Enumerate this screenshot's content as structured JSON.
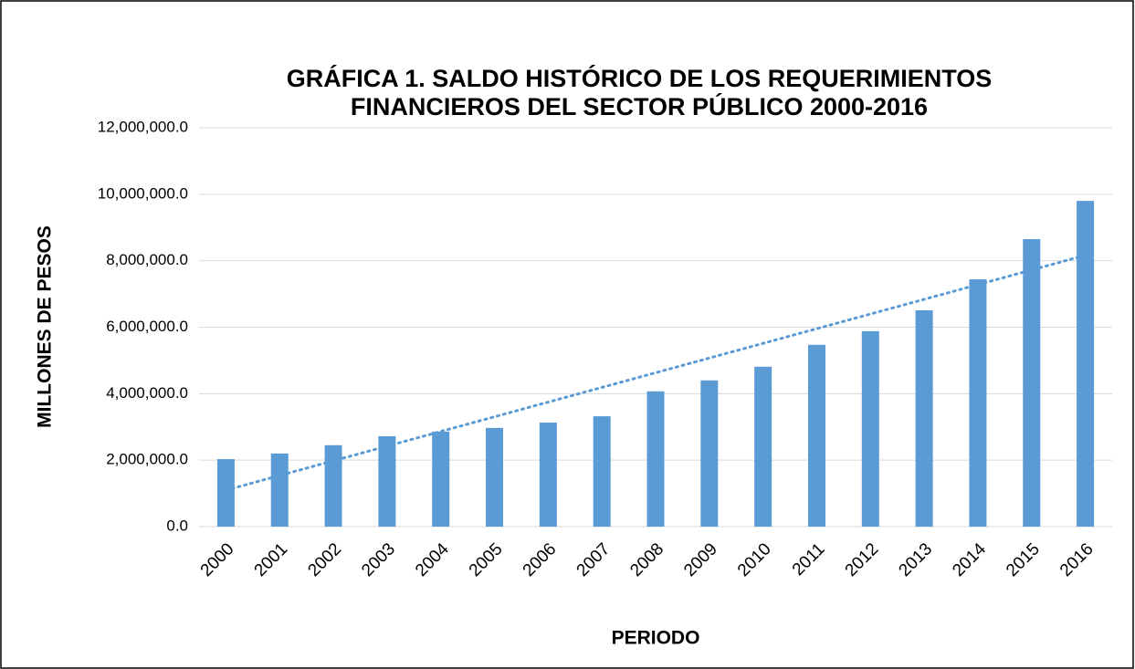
{
  "chart_data": {
    "type": "bar",
    "title": [
      "GRÁFICA 1. SALDO HISTÓRICO DE LOS REQUERIMIENTOS",
      "FINANCIEROS DEL SECTOR PÚBLICO 2000-2016"
    ],
    "x_label": "PERIODO",
    "y_label": "MILLONES DE PESOS",
    "categories": [
      "2000",
      "2001",
      "2002",
      "2003",
      "2004",
      "2005",
      "2006",
      "2007",
      "2008",
      "2009",
      "2010",
      "2011",
      "2012",
      "2013",
      "2014",
      "2015",
      "2016"
    ],
    "values": [
      2030000,
      2200000,
      2450000,
      2720000,
      2860000,
      2970000,
      3130000,
      3320000,
      4070000,
      4400000,
      4810000,
      5470000,
      5880000,
      6510000,
      7440000,
      8650000,
      9800000
    ],
    "color": "#5b9bd5",
    "trendline": true,
    "ylim": [
      0,
      12000000
    ],
    "yticks": [
      {
        "value": 0,
        "label": "0.0"
      },
      {
        "value": 2000000,
        "label": "2,000,000.0"
      },
      {
        "value": 4000000,
        "label": "4,000,000.0"
      },
      {
        "value": 6000000,
        "label": "6,000,000.0"
      },
      {
        "value": 8000000,
        "label": "8,000,000.0"
      },
      {
        "value": 10000000,
        "label": "10,000,000.0"
      },
      {
        "value": 12000000,
        "label": "12,000,000.0"
      }
    ],
    "grid": true
  }
}
